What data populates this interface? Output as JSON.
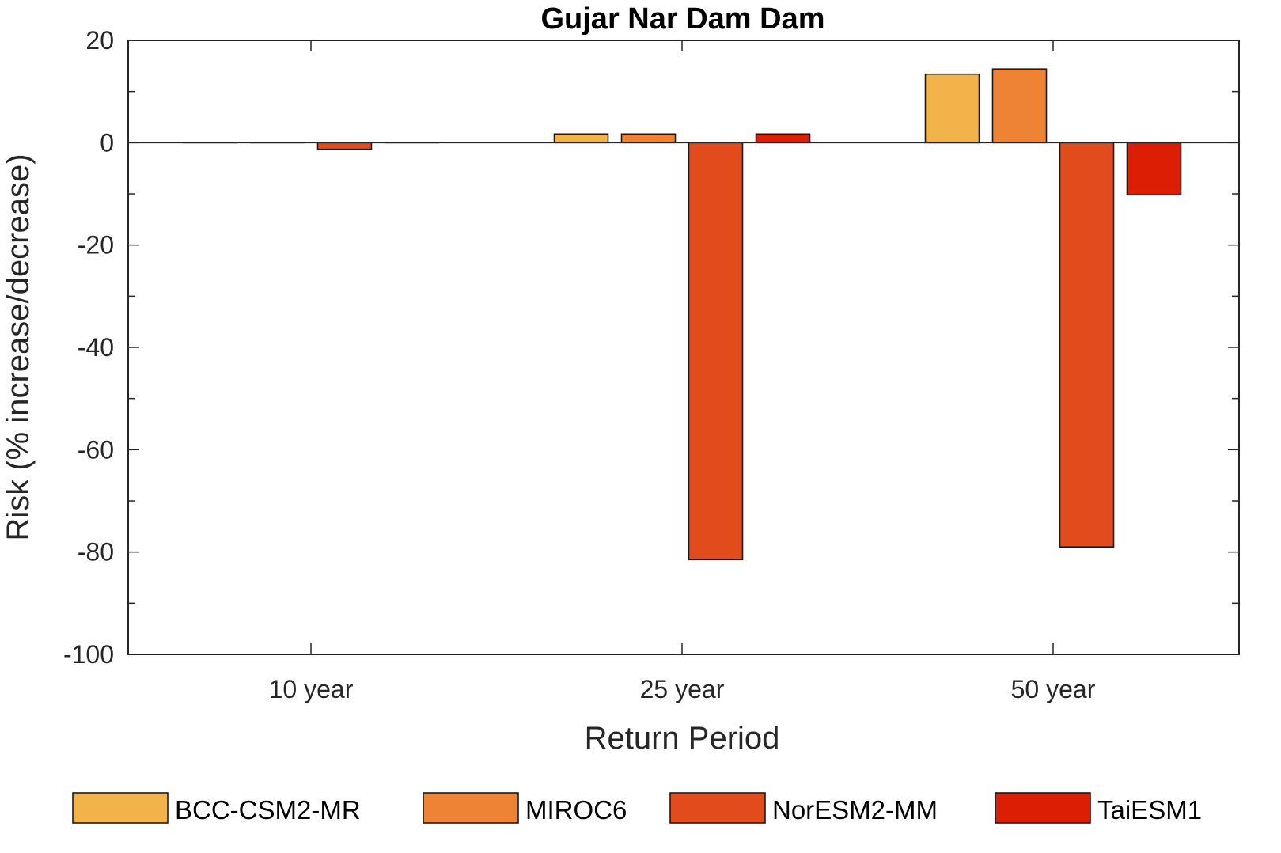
{
  "chart_data": {
    "type": "bar",
    "title": "Gujar Nar Dam Dam",
    "xlabel": "Return Period",
    "ylabel": "Risk (% increase/decrease)",
    "categories": [
      "10 year",
      "25 year",
      "50 year"
    ],
    "ylim": [
      -100,
      20
    ],
    "yticks": [
      -100,
      -80,
      -60,
      -40,
      -20,
      0,
      20
    ],
    "grid": false,
    "legend_position": "bottom",
    "series": [
      {
        "name": "BCC-CSM2-MR",
        "color": "#F2B34B",
        "values": [
          0,
          1.7,
          13.4
        ]
      },
      {
        "name": "MIROC6",
        "color": "#EE8235",
        "values": [
          0,
          1.7,
          14.4
        ]
      },
      {
        "name": "NorESM2-MM",
        "color": "#E24C1C",
        "values": [
          -1.3,
          -81.5,
          -79
        ]
      },
      {
        "name": "TaiESM1",
        "color": "#DC1F04",
        "values": [
          0,
          1.7,
          -10.2
        ]
      }
    ]
  }
}
